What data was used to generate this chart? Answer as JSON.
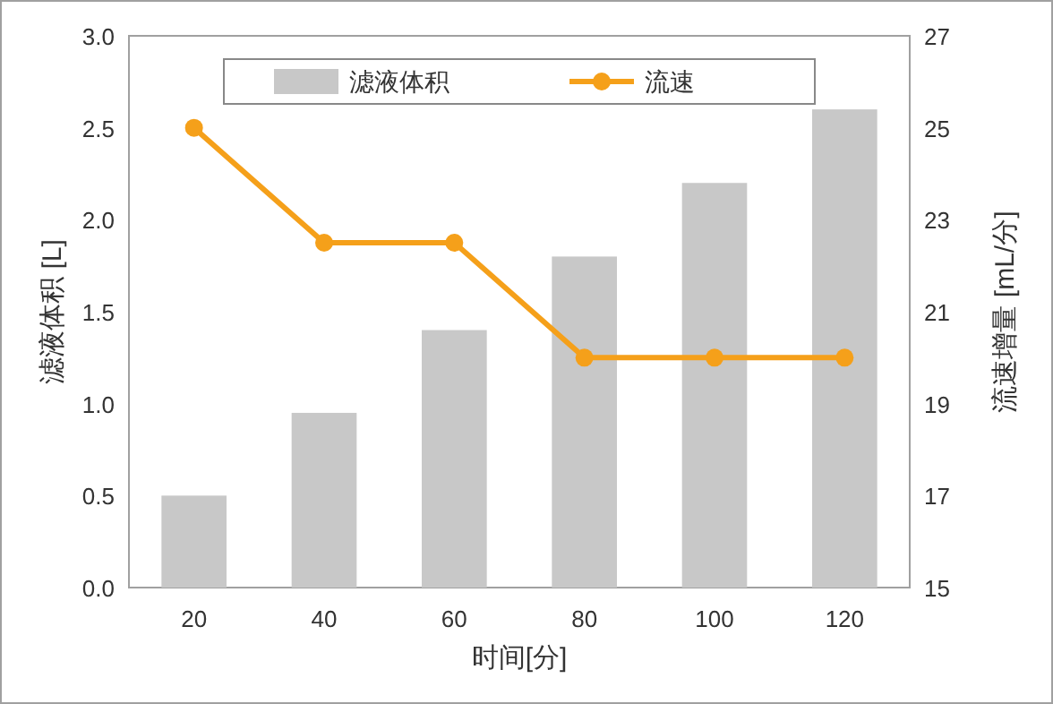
{
  "chart_data": {
    "type": "bar",
    "xlabel": "时间[分]",
    "ylabel": "滤液体积 [L]",
    "y2label": "流速增量 [mL/分]",
    "categories": [
      "20",
      "40",
      "60",
      "80",
      "100",
      "120"
    ],
    "series": [
      {
        "name": "滤液体积",
        "color": "#c8c8c8",
        "values": [
          0.5,
          0.95,
          1.4,
          1.8,
          2.2,
          2.6
        ]
      },
      {
        "name": "流速",
        "type": "line",
        "axis": "y2",
        "color": "#f5a01a",
        "values": [
          25,
          22.5,
          22.5,
          20,
          20,
          20
        ]
      }
    ],
    "ylim": [
      0,
      3
    ],
    "yticks": [
      {
        "value": 0,
        "label": "0.0"
      },
      {
        "value": 0.5,
        "label": "0.5"
      },
      {
        "value": 1,
        "label": "1.0"
      },
      {
        "value": 1.5,
        "label": "1.5"
      },
      {
        "value": 2,
        "label": "2.0"
      },
      {
        "value": 2.5,
        "label": "2.5"
      },
      {
        "value": 3,
        "label": "3.0"
      }
    ],
    "y2lim": [
      15,
      27
    ],
    "y2ticks": [
      15,
      17,
      19,
      21,
      23,
      25,
      27
    ],
    "legend": "top",
    "grid": false,
    "marker": "circle",
    "line_style": "solid"
  }
}
